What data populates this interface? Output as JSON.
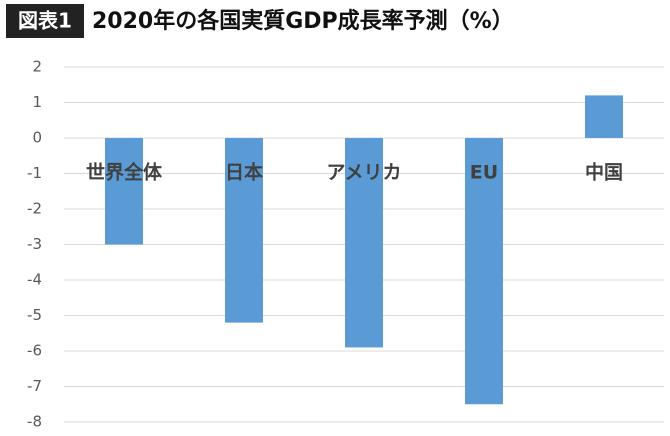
{
  "chart_data": {
    "type": "bar",
    "badge": "図表1",
    "title": "2020年の各国実質GDP成長率予測（%）",
    "categories": [
      "世界全体",
      "日本",
      "アメリカ",
      "EU",
      "中国"
    ],
    "values": [
      -3.0,
      -5.2,
      -5.9,
      -7.5,
      1.2
    ],
    "color": "#5b9bd5",
    "ylim": [
      -8,
      2
    ],
    "yticks": [
      -8,
      -7,
      -6,
      -5,
      -4,
      -3,
      -2,
      -1,
      0,
      1,
      2
    ],
    "grid": true
  }
}
